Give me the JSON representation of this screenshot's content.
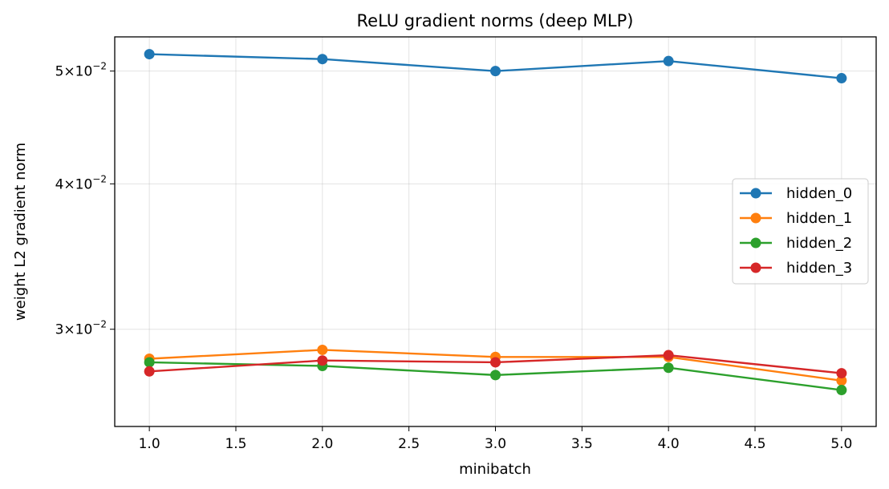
{
  "chart_data": {
    "type": "line",
    "title": "ReLU gradient norms (deep MLP)",
    "xlabel": "minibatch",
    "ylabel": "weight L2 gradient norm",
    "x": [
      1.0,
      2.0,
      3.0,
      4.0,
      5.0
    ],
    "xlim": [
      0.8,
      5.2
    ],
    "ylim": [
      0.02475,
      0.0535
    ],
    "yscale": "log",
    "grid": true,
    "legend_loc": "center-right",
    "x_ticks": [
      1.0,
      1.5,
      2.0,
      2.5,
      3.0,
      3.5,
      4.0,
      4.5,
      5.0
    ],
    "x_tick_labels": [
      "1.0",
      "1.5",
      "2.0",
      "2.5",
      "3.0",
      "3.5",
      "4.0",
      "4.5",
      "5.0"
    ],
    "y_ticks": [
      0.03,
      0.04,
      0.05
    ],
    "y_tick_mantissas": [
      "3",
      "4",
      "5"
    ],
    "y_tick_base": "10",
    "y_tick_exponent": "−2",
    "series": [
      {
        "name": "hidden_0",
        "color": "#1f77b4",
        "values": [
          0.0517,
          0.0512,
          0.05,
          0.051,
          0.0493
        ]
      },
      {
        "name": "hidden_1",
        "color": "#ff7f0e",
        "values": [
          0.0283,
          0.0288,
          0.0284,
          0.0284,
          0.0271
        ]
      },
      {
        "name": "hidden_2",
        "color": "#2ca02c",
        "values": [
          0.0281,
          0.0279,
          0.0274,
          0.0278,
          0.0266
        ]
      },
      {
        "name": "hidden_3",
        "color": "#d62728",
        "values": [
          0.0276,
          0.0282,
          0.0281,
          0.0285,
          0.0275
        ]
      }
    ]
  }
}
